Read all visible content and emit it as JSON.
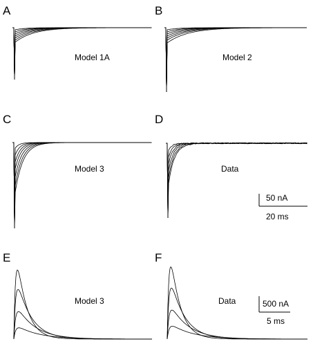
{
  "panels": [
    {
      "letter": "A",
      "label": "Model 1A"
    },
    {
      "letter": "B",
      "label": "Model 2"
    },
    {
      "letter": "C",
      "label": "Model 3"
    },
    {
      "letter": "D",
      "label": "Data"
    },
    {
      "letter": "E",
      "label": "Model 3"
    },
    {
      "letter": "F",
      "label": "Data"
    }
  ],
  "scale_bars": [
    {
      "vertical": "50 nA",
      "horizontal": "20 ms"
    },
    {
      "vertical": "500 nA",
      "horizontal": "5 ms"
    }
  ]
}
